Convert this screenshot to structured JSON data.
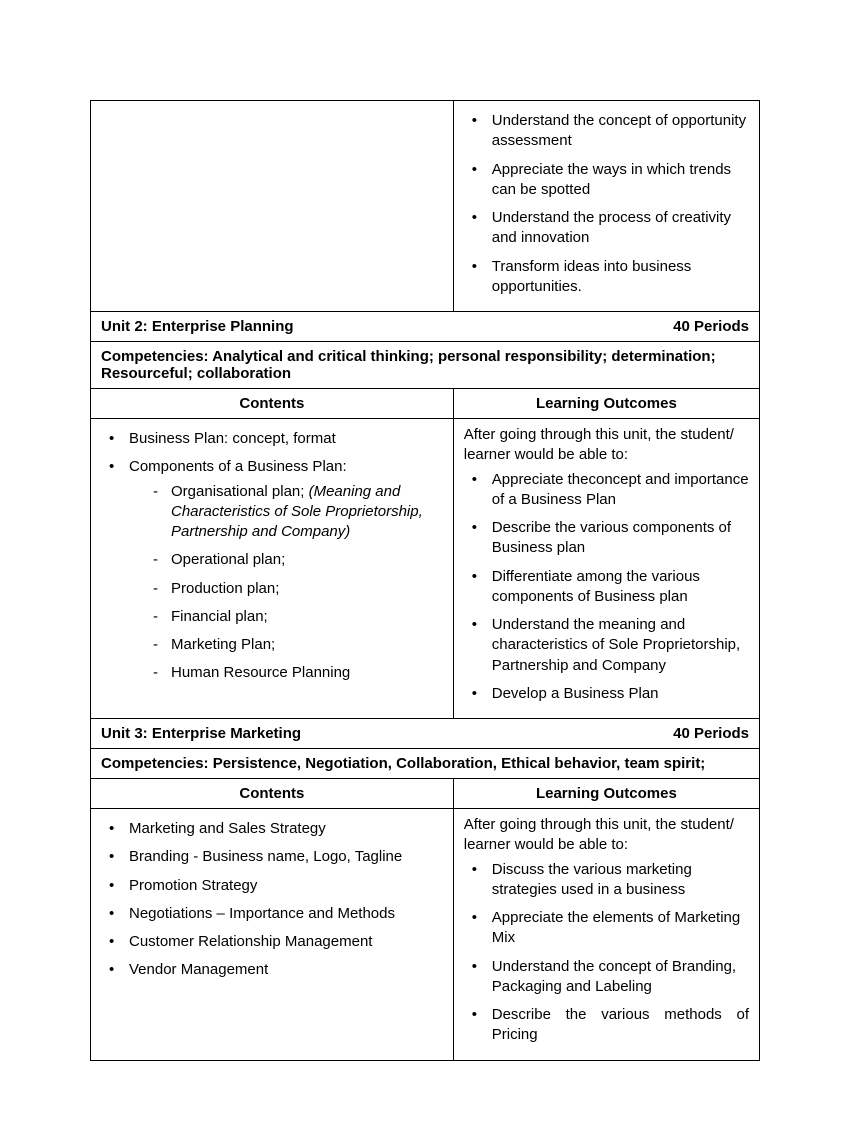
{
  "top_outcomes": [
    "Understand the concept of opportunity assessment",
    "Appreciate the ways in which trends can be spotted",
    "Understand the process of creativity and innovation",
    "Transform ideas into business opportunities."
  ],
  "unit2": {
    "title": "Unit 2: Enterprise Planning",
    "periods": "40 Periods",
    "competencies": "Competencies: Analytical and critical thinking; personal responsibility; determination; Resourceful; collaboration",
    "contents_header": "Contents",
    "outcomes_header": "Learning Outcomes",
    "contents": {
      "item1": "Business Plan: concept, format",
      "item2": "Components of a Business Plan:",
      "sub1_prefix": "Organisational plan; ",
      "sub1_italic": "(Meaning and Characteristics of Sole Proprietorship, Partnership and Company)",
      "sub2": "Operational plan;",
      "sub3": "Production plan;",
      "sub4": "Financial plan;",
      "sub5": "Marketing Plan;",
      "sub6": "Human Resource Planning"
    },
    "outcomes_intro": "After going through this unit, the student/ learner would be able to:",
    "outcomes": [
      "Appreciate theconcept and importance of a Business Plan",
      "Describe the various components of Business plan",
      "Differentiate among the various components of Business plan",
      "Understand the meaning and characteristics of Sole Proprietorship, Partnership and Company",
      "Develop a Business Plan"
    ]
  },
  "unit3": {
    "title": "Unit 3: Enterprise Marketing",
    "periods": "40 Periods",
    "competencies": "Competencies: Persistence, Negotiation, Collaboration, Ethical behavior, team spirit;",
    "contents_header": "Contents",
    "outcomes_header": "Learning Outcomes",
    "contents": [
      "Marketing and Sales Strategy",
      "Branding - Business name, Logo, Tagline",
      "Promotion Strategy",
      "Negotiations – Importance and Methods",
      "Customer Relationship Management",
      "Vendor Management"
    ],
    "outcomes_intro": "After going through this unit, the student/ learner would be able to:",
    "outcomes": {
      "o1": "Discuss the various marketing strategies used in a business",
      "o2": "Appreciate the elements of Marketing Mix",
      "o3": "Understand the concept of Branding, Packaging and Labeling",
      "o4": "Describe the various methods of Pricing"
    }
  }
}
